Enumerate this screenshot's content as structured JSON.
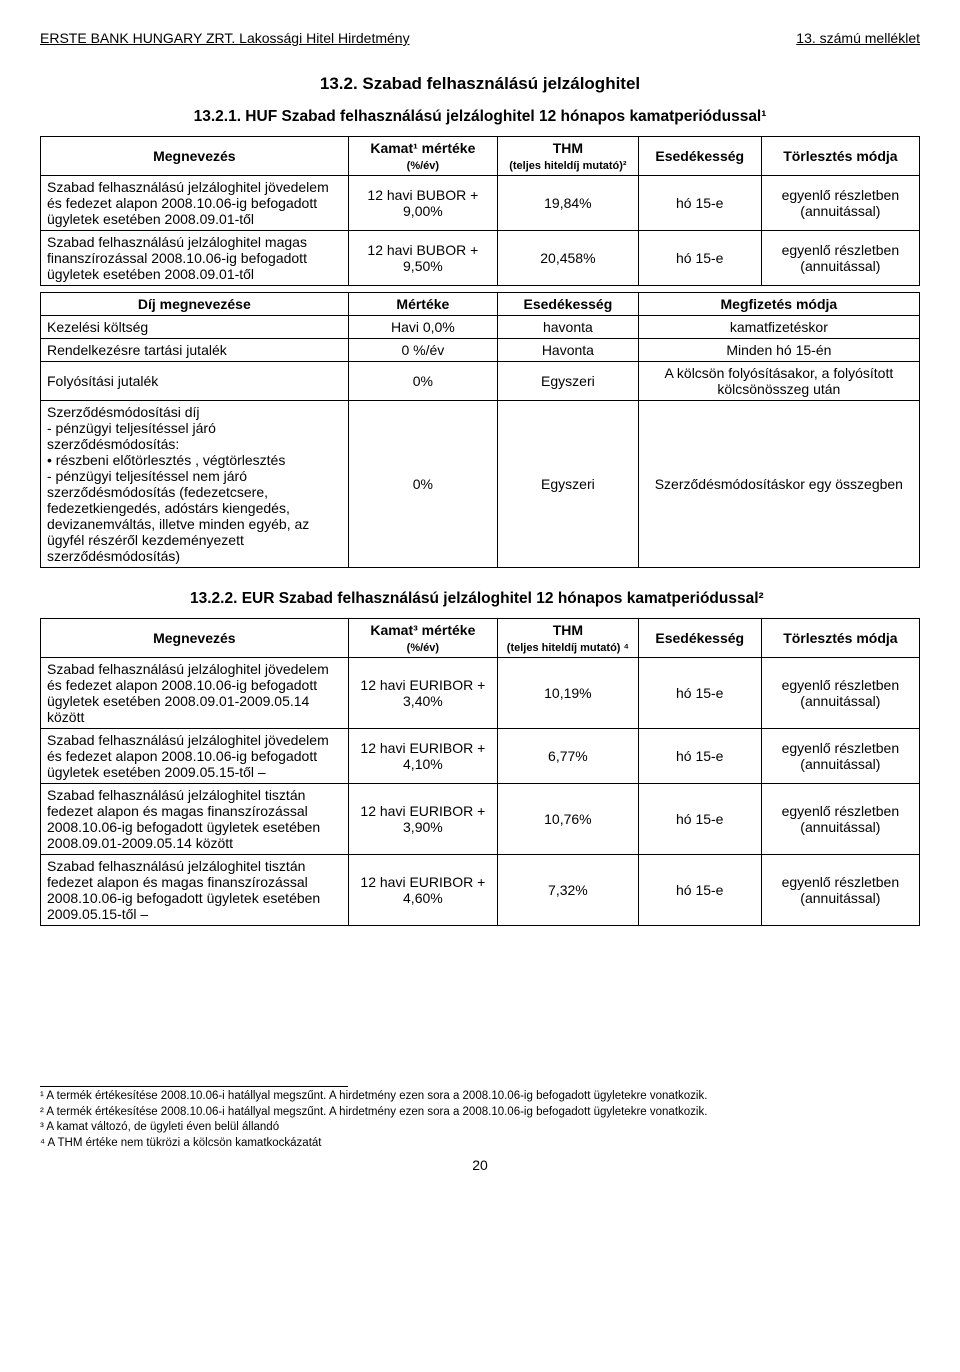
{
  "header": {
    "left": "ERSTE BANK HUNGARY ZRT. Lakossági Hitel Hirdetmény",
    "right": "13. számú melléklet"
  },
  "section_title": "13.2. Szabad felhasználású jelzáloghitel",
  "subsection1_title": "13.2.1. HUF Szabad felhasználású jelzáloghitel 12 hónapos kamatperiódussal¹",
  "table1": {
    "headers": {
      "name": "Megnevezés",
      "rate": "Kamat¹ mértéke",
      "rate_sub": "(%/év)",
      "thm": "THM",
      "thm_sub": "(teljes hiteldíj mutató)²",
      "due": "Esedékesség",
      "pay": "Törlesztés módja"
    },
    "rows": [
      {
        "name": "Szabad felhasználású jelzáloghitel jövedelem és fedezet alapon 2008.10.06-ig befogadott ügyletek esetében 2008.09.01-től",
        "rate": "12 havi BUBOR + 9,00%",
        "thm": "19,84%",
        "due": "hó 15-e",
        "pay": "egyenlő részletben (annuitással)"
      },
      {
        "name": "Szabad felhasználású jelzáloghitel magas finanszírozással 2008.10.06-ig befogadott ügyletek esetében 2008.09.01-től",
        "rate": "12 havi BUBOR + 9,50%",
        "thm": "20,458%",
        "due": "hó 15-e",
        "pay": "egyenlő részletben (annuitással)"
      }
    ]
  },
  "fee_table": {
    "headers": {
      "a": "Díj megnevezése",
      "b": "Mértéke",
      "c": "Esedékesség",
      "d": "Megfizetés módja"
    },
    "rows": [
      {
        "a": "Kezelési költség",
        "b": "Havi 0,0%",
        "c": "havonta",
        "d": "kamatfizetéskor"
      },
      {
        "a": "Rendelkezésre tartási jutalék",
        "b": "0 %/év",
        "c": "Havonta",
        "d": "Minden hó 15-én"
      },
      {
        "a": "Folyósítási jutalék",
        "b": "0%",
        "c": "Egyszeri",
        "d": "A kölcsön folyósításakor, a folyósított kölcsönösszeg után"
      },
      {
        "a": "Szerződésmódosítási díj\n- pénzügyi teljesítéssel járó szerződésmódosítás:\n • részbeni előtörlesztés , végtörlesztés\n- pénzügyi teljesítéssel nem járó szerződésmódosítás (fedezetcsere, fedezetkiengedés, adóstárs kiengedés, devizanemváltás, illetve minden egyéb, az ügyfél részéről kezdeményezett szerződésmódosítás)",
        "b": "0%",
        "c": "Egyszeri",
        "d": "Szerződésmódosításkor egy összegben"
      }
    ]
  },
  "subsection2_title": "13.2.2. EUR Szabad felhasználású jelzáloghitel 12 hónapos kamatperiódussal²",
  "table2": {
    "headers": {
      "name": "Megnevezés",
      "rate": "Kamat³ mértéke",
      "rate_sub": "(%/év)",
      "thm": "THM",
      "thm_sub": "(teljes hiteldíj mutató) ⁴",
      "due": "Esedékesség",
      "pay": "Törlesztés módja"
    },
    "rows": [
      {
        "name": "Szabad felhasználású jelzáloghitel jövedelem és fedezet alapon 2008.10.06-ig befogadott ügyletek esetében 2008.09.01-2009.05.14 között",
        "rate": "12 havi EURIBOR + 3,40%",
        "thm": "10,19%",
        "due": "hó 15-e",
        "pay": "egyenlő részletben (annuitással)"
      },
      {
        "name": "Szabad felhasználású jelzáloghitel jövedelem és fedezet alapon 2008.10.06-ig befogadott ügyletek esetében 2009.05.15-től –",
        "rate": "12 havi EURIBOR + 4,10%",
        "thm": "6,77%",
        "due": "hó 15-e",
        "pay": "egyenlő részletben (annuitással)"
      },
      {
        "name": "Szabad felhasználású jelzáloghitel tisztán fedezet alapon és magas finanszírozással 2008.10.06-ig befogadott ügyletek esetében 2008.09.01-2009.05.14 között",
        "rate": "12 havi EURIBOR + 3,90%",
        "thm": "10,76%",
        "due": "hó 15-e",
        "pay": "egyenlő részletben (annuitással)"
      },
      {
        "name": "Szabad felhasználású jelzáloghitel tisztán fedezet alapon és magas finanszírozással 2008.10.06-ig befogadott ügyletek esetében 2009.05.15-től –",
        "rate": "12 havi EURIBOR + 4,60%",
        "thm": "7,32%",
        "due": "hó 15-e",
        "pay": "egyenlő részletben (annuitással)"
      }
    ]
  },
  "footnotes": [
    "¹ A termék értékesítése 2008.10.06-i hatállyal megszűnt. A hirdetmény ezen sora a 2008.10.06-ig befogadott ügyletekre vonatkozik.",
    "² A termék értékesítése 2008.10.06-i hatállyal megszűnt. A hirdetmény ezen sora a 2008.10.06-ig befogadott ügyletekre vonatkozik.",
    "³ A kamat változó, de ügyleti éven belül állandó",
    "⁴ A THM értéke nem tükrözi a kölcsön kamatkockázatát"
  ],
  "page_number": "20"
}
